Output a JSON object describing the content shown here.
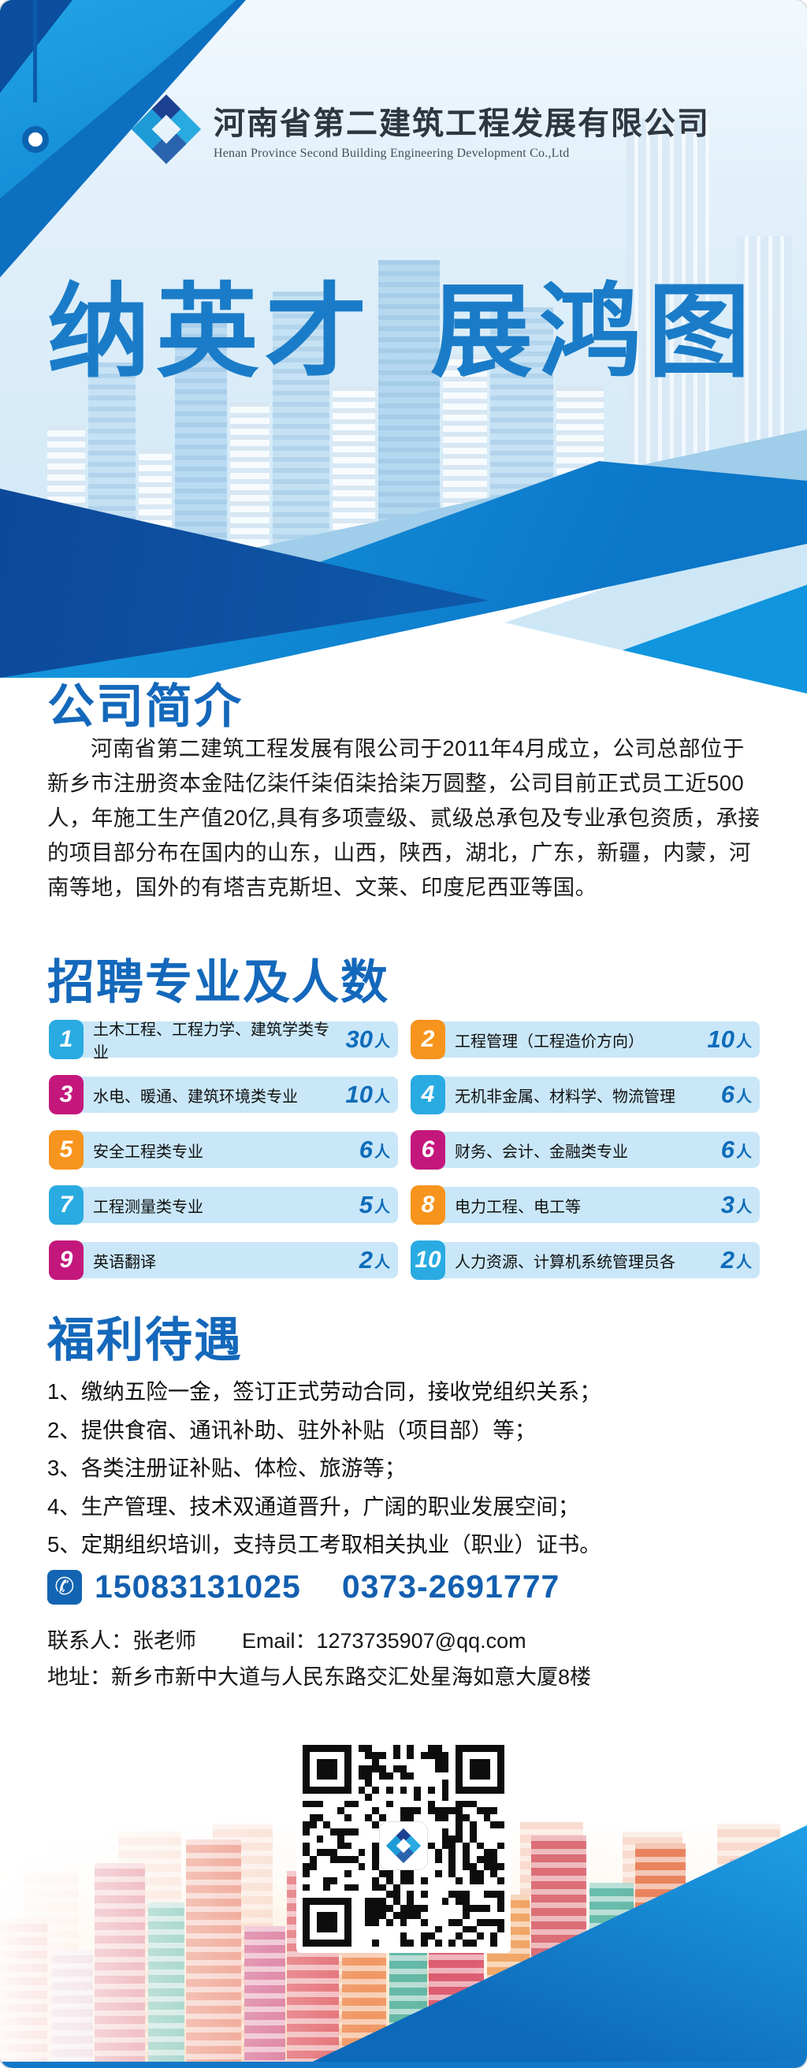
{
  "header": {
    "company_cn": "河南省第二建筑工程发展有限公司",
    "company_en": "Henan Province Second Building Engineering Development Co.,Ltd",
    "logo_icon": "company-logo"
  },
  "hero": {
    "title": "纳英才 展鸿图"
  },
  "about": {
    "heading": "公司简介",
    "body": "河南省第二建筑工程发展有限公司于2011年4月成立，公司总部位于新乡市注册资本金陆亿柒仟柒佰柒拾柒万圆整，公司目前正式员工近500人，年施工生产值20亿,具有多项壹级、贰级总承包及专业承包资质，承接的项目部分布在国内的山东，山西，陕西，湖北，广东，新疆，内蒙，河南等地，国外的有塔吉克斯坦、文莱、印度尼西亚等国。"
  },
  "jobs": {
    "heading": "招聘专业及人数",
    "unit": "人",
    "items": [
      {
        "no": "1",
        "major": "土木工程、工程力学、建筑学类专业",
        "count": "30",
        "badge_color": "#29abe2"
      },
      {
        "no": "2",
        "major": "工程管理（工程造价方向）",
        "count": "10",
        "badge_color": "#f7941d"
      },
      {
        "no": "3",
        "major": "水电、暖通、建筑环境类专业",
        "count": "10",
        "badge_color": "#c4177c"
      },
      {
        "no": "4",
        "major": "无机非金属、材料学、物流管理",
        "count": "6",
        "badge_color": "#29abe2"
      },
      {
        "no": "5",
        "major": "安全工程类专业",
        "count": "6",
        "badge_color": "#f7941d"
      },
      {
        "no": "6",
        "major": "财务、会计、金融类专业",
        "count": "6",
        "badge_color": "#c4177c"
      },
      {
        "no": "7",
        "major": "工程测量类专业",
        "count": "5",
        "badge_color": "#29abe2"
      },
      {
        "no": "8",
        "major": "电力工程、电工等",
        "count": "3",
        "badge_color": "#f7941d"
      },
      {
        "no": "9",
        "major": "英语翻译",
        "count": "2",
        "badge_color": "#c4177c"
      },
      {
        "no": "10",
        "major": "人力资源、计算机系统管理员各",
        "count": "2",
        "badge_color": "#29abe2"
      }
    ]
  },
  "benefits": {
    "heading": "福利待遇",
    "items": [
      "1、缴纳五险一金，签订正式劳动合同，接收党组织关系；",
      "2、提供食宿、通讯补助、驻外补贴（项目部）等；",
      "3、各类注册证补贴、体检、旅游等；",
      "4、生产管理、技术双通道晋升，广阔的职业发展空间；",
      "5、定期组织培训，支持员工考取相关执业（职业）证书。"
    ]
  },
  "contact": {
    "phone_icon": "✆",
    "phone1": "15083131025",
    "phone2": "0373-2691777",
    "person": "联系人：张老师",
    "email": "Email：1273735907@qq.com",
    "address": "地址：新乡市新中大道与人民东路交汇处星海如意大厦8楼"
  },
  "colors": {
    "accent_blue": "#1a7cc8",
    "heading_blue": "#1468bb",
    "row_bg": "#c9e7f8",
    "count_blue": "#0e6cb9",
    "badge_cyan": "#29abe2",
    "badge_orange": "#f7941d",
    "badge_magenta": "#c4177c",
    "navy": "#0c4697",
    "bright_blue": "#1095de"
  }
}
